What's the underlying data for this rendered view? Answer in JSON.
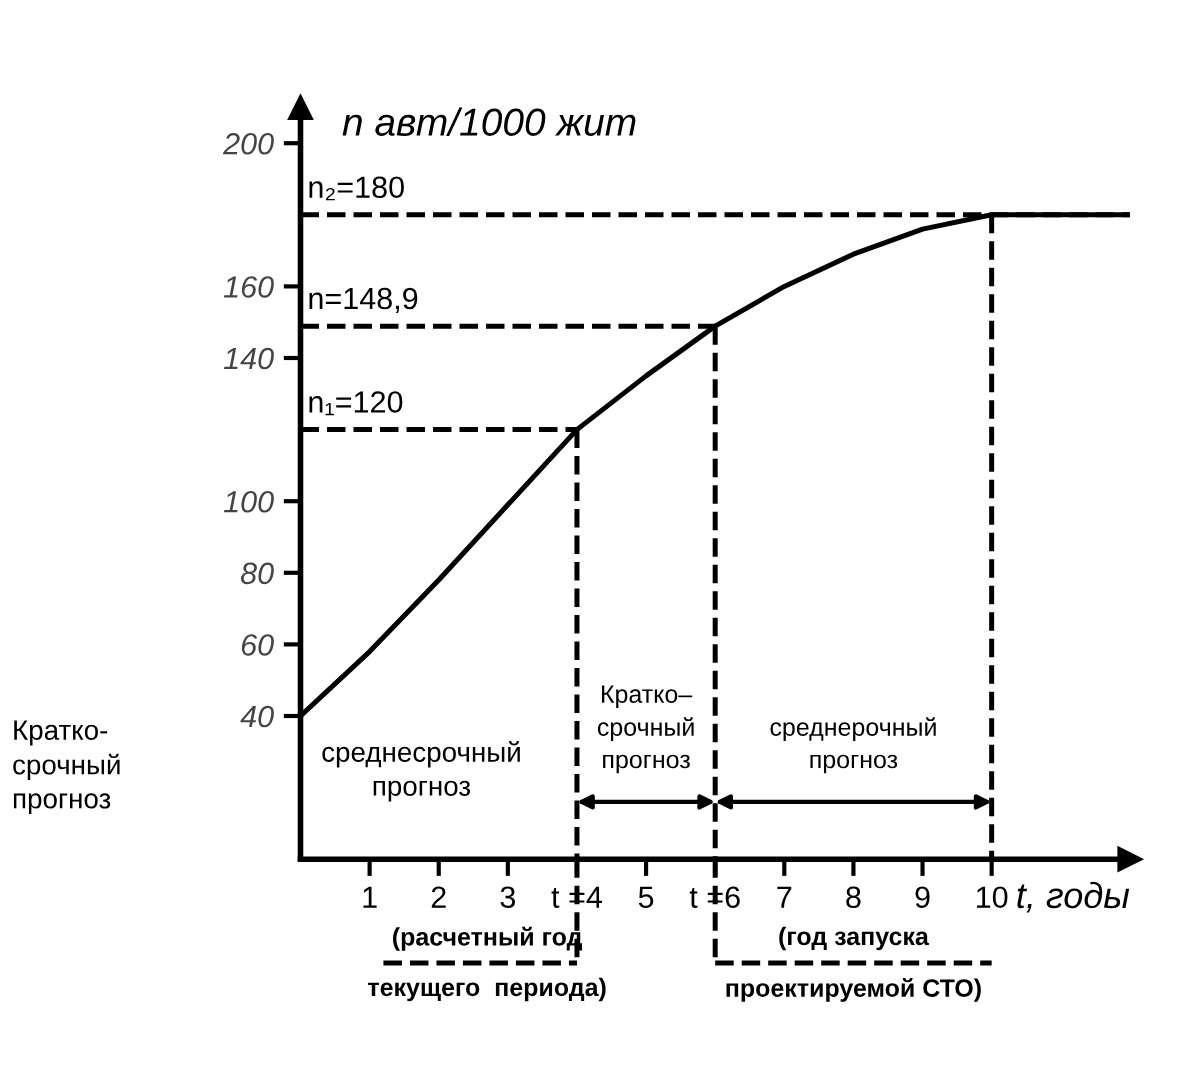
{
  "chart_data": {
    "type": "line",
    "ylabel": "n авт/1000 жит",
    "xlabel": "t, годы",
    "x": [
      0,
      1,
      2,
      3,
      4,
      5,
      6,
      7,
      8,
      9,
      10,
      12
    ],
    "series": [
      {
        "color": "#000000",
        "values": [
          40,
          58,
          78,
          99,
          120,
          135,
          148.9,
          160,
          169,
          176,
          180,
          180
        ]
      }
    ],
    "xlim": [
      0,
      12
    ],
    "ylim": [
      0,
      210
    ],
    "xticks": [
      1,
      2,
      3,
      {
        "value": 4,
        "label": "t =4"
      },
      5,
      {
        "value": 6,
        "label": "t =6"
      },
      7,
      8,
      9,
      10
    ],
    "yticks": [
      40,
      60,
      80,
      100,
      140,
      160,
      200
    ],
    "ref_lines": [
      {
        "axis": "y",
        "value": 120,
        "label": "n₁=120",
        "line_style": "dashed"
      },
      {
        "axis": "y",
        "value": 148.9,
        "label": "n=148,9",
        "line_style": "dashed"
      },
      {
        "axis": "y",
        "value": 180,
        "label": "n₂=180",
        "line_style": "dashed"
      },
      {
        "axis": "x",
        "value": 4,
        "line_style": "dashed"
      },
      {
        "axis": "x",
        "value": 6,
        "line_style": "dashed"
      },
      {
        "axis": "x",
        "value": 10,
        "line_style": "dashed"
      }
    ],
    "annotations": [
      "Кратко-\nсрочный\nпрогноз",
      "среднесрочный\nпрогноз",
      "(расчетный год\nтекущего  периода)",
      "(год запуска\nпроектируемой СТО)",
      "Кратко–\nсрочный\nпрогноз",
      "среднерочный\nпрогноз"
    ],
    "marker": "none",
    "line_style": "solid"
  }
}
